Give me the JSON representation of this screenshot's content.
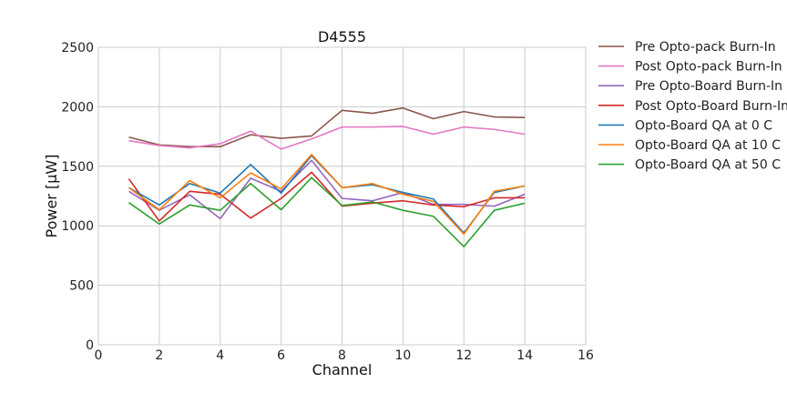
{
  "chart_data": {
    "type": "line",
    "title": "D4555",
    "xlabel": "Channel",
    "ylabel": "Power [μW]",
    "xlim": [
      0,
      16
    ],
    "ylim": [
      0,
      2500
    ],
    "xticks": [
      0,
      2,
      4,
      6,
      8,
      10,
      12,
      14,
      16
    ],
    "yticks": [
      0,
      500,
      1000,
      1500,
      2000,
      2500
    ],
    "grid": true,
    "legend_position": "outside-right",
    "x": [
      1,
      2,
      3,
      4,
      5,
      6,
      7,
      8,
      9,
      10,
      11,
      12,
      13,
      14
    ],
    "series": [
      {
        "name": "Pre Opto-pack Burn-In",
        "color": "#8c564b",
        "values": [
          1745,
          1680,
          1665,
          1665,
          1765,
          1735,
          1755,
          1970,
          1945,
          1990,
          1900,
          1960,
          1915,
          1910
        ]
      },
      {
        "name": "Post Opto-pack Burn-In",
        "color": "#e377c2",
        "values": [
          1715,
          1675,
          1655,
          1690,
          1795,
          1645,
          1730,
          1830,
          1830,
          1835,
          1770,
          1830,
          1810,
          1770
        ]
      },
      {
        "name": "Pre Opto-Board Burn-In",
        "color": "#9467bd",
        "values": [
          1290,
          1130,
          1260,
          1060,
          1400,
          1290,
          1550,
          1230,
          1210,
          1280,
          1180,
          1180,
          1165,
          1265
        ]
      },
      {
        "name": "Post Opto-Board Burn-In",
        "color": "#d62728",
        "values": [
          1395,
          1040,
          1290,
          1265,
          1065,
          1230,
          1450,
          1165,
          1190,
          1210,
          1175,
          1160,
          1235,
          1235
        ]
      },
      {
        "name": "Opto-Board QA at 0 C",
        "color": "#1f77b4",
        "values": [
          1320,
          1175,
          1355,
          1275,
          1515,
          1275,
          1590,
          1320,
          1345,
          1280,
          1225,
          940,
          1280,
          1335
        ]
      },
      {
        "name": "Opto-Board QA at 10 C",
        "color": "#ff7f0e",
        "values": [
          1320,
          1135,
          1380,
          1235,
          1445,
          1310,
          1600,
          1320,
          1355,
          1265,
          1205,
          930,
          1290,
          1335
        ]
      },
      {
        "name": "Opto-Board QA at 50 C",
        "color": "#2ca02c",
        "values": [
          1195,
          1015,
          1175,
          1130,
          1355,
          1135,
          1405,
          1170,
          1200,
          1130,
          1080,
          825,
          1130,
          1190
        ]
      }
    ]
  }
}
